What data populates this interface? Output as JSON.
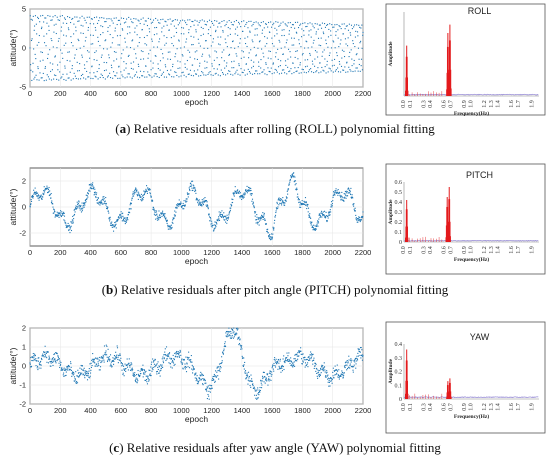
{
  "captions": [
    {
      "letter": "a",
      "text": "Relative residuals after rolling (ROLL) polynomial fitting"
    },
    {
      "letter": "b",
      "text": "Relative residuals after pitch angle (PITCH) polynomial fitting"
    },
    {
      "letter": "c",
      "text": "Relative residuals after yaw angle (YAW) polynomial fitting"
    }
  ],
  "colors": {
    "scatter": "#1f77b4",
    "spectrum_peak": "#e31a1c",
    "spectrum_floor": "#9a8fd6",
    "frame": "#333333"
  },
  "chart_data": [
    {
      "type": "scatter",
      "xlabel": "epoch",
      "ylabel": "attitude(°)",
      "xlim": [
        0,
        2200
      ],
      "ylim": [
        -5,
        5
      ],
      "xticks": [
        0,
        200,
        400,
        600,
        800,
        1000,
        1200,
        1400,
        1600,
        1800,
        2000,
        2200
      ],
      "yticks": [
        -5,
        0,
        5
      ],
      "series_note": "",
      "envelope": {
        "amplitude": 4.5,
        "waves": 7,
        "num_points": 2200
      },
      "grid": true
    },
    {
      "type": "line",
      "title": "ROLL",
      "xlabel": "Frequency(Hz)",
      "ylabel": "Amplitude",
      "xlim": [
        0,
        2.0
      ],
      "ylim": [
        0,
        0.8
      ],
      "yticks": [],
      "xticks": [
        0.0,
        0.1,
        0.3,
        0.4,
        0.6,
        0.7,
        0.9,
        1.0,
        1.2,
        1.3,
        1.4,
        1.6,
        1.7,
        1.9
      ],
      "xtick_labels": [
        "0.0",
        "0.1",
        "0.3",
        "0.4",
        "0.6",
        "0.7",
        "0.9",
        "1.0",
        "1.2",
        "1.3",
        "1.4",
        "1.6",
        "1.7",
        "1.9"
      ],
      "peaks": [
        {
          "x": 0.04,
          "y": 0.48
        },
        {
          "x": 0.65,
          "y": 0.6
        },
        {
          "x": 0.68,
          "y": 0.68
        }
      ]
    },
    {
      "type": "scatter",
      "xlabel": "epoch",
      "ylabel": "attitude(°)",
      "xlim": [
        0,
        2200
      ],
      "ylim": [
        -3,
        3
      ],
      "xticks": [
        0,
        200,
        400,
        600,
        800,
        1000,
        1200,
        1400,
        1600,
        1800,
        2000,
        2200
      ],
      "yticks": [
        -2,
        0,
        2
      ],
      "grid": true
    },
    {
      "type": "line",
      "title": "PITCH",
      "xlabel": "Frequency(Hz)",
      "ylabel": "Amplitude",
      "xlim": [
        0,
        2.0
      ],
      "ylim": [
        0,
        0.6
      ],
      "yticks": [
        0,
        0.1,
        0.2,
        0.3,
        0.4,
        0.5,
        0.6
      ],
      "xticks": [
        0.0,
        0.1,
        0.3,
        0.4,
        0.6,
        0.7,
        0.9,
        1.0,
        1.2,
        1.3,
        1.4,
        1.6,
        1.7,
        1.9
      ],
      "xtick_labels": [
        "0.0",
        "0.1",
        "0.3",
        "0.4",
        "0.6",
        "0.7",
        "0.9",
        "1.0",
        "1.2",
        "1.3",
        "1.4",
        "1.6",
        "1.7",
        "1.9"
      ],
      "peaks": [
        {
          "x": 0.04,
          "y": 0.42
        },
        {
          "x": 0.64,
          "y": 0.45
        },
        {
          "x": 0.67,
          "y": 0.55
        }
      ]
    },
    {
      "type": "scatter",
      "xlabel": "epoch",
      "ylabel": "attitude(°)",
      "xlim": [
        0,
        2200
      ],
      "ylim": [
        -2,
        2
      ],
      "xticks": [
        0,
        200,
        400,
        600,
        800,
        1000,
        1200,
        1400,
        1600,
        1800,
        2000,
        2200
      ],
      "yticks": [
        -2,
        -1,
        0,
        1,
        2
      ],
      "grid": true
    },
    {
      "type": "line",
      "title": "YAW",
      "xlabel": "Frequency(Hz)",
      "ylabel": "Amplitude",
      "xlim": [
        0,
        2.0
      ],
      "ylim": [
        0,
        0.4
      ],
      "yticks": [
        0,
        0.1,
        0.2,
        0.3,
        0.4
      ],
      "xticks": [
        0.0,
        0.1,
        0.3,
        0.4,
        0.6,
        0.7,
        0.9,
        1.0,
        1.2,
        1.3,
        1.4,
        1.6,
        1.7,
        1.9
      ],
      "xtick_labels": [
        "0.0",
        "0.1",
        "0.3",
        "0.4",
        "0.6",
        "0.7",
        "0.9",
        "1.0",
        "1.2",
        "1.3",
        "1.4",
        "1.6",
        "1.7",
        "1.9"
      ],
      "peaks": [
        {
          "x": 0.04,
          "y": 0.36
        },
        {
          "x": 0.65,
          "y": 0.13
        },
        {
          "x": 0.68,
          "y": 0.15
        }
      ]
    }
  ]
}
